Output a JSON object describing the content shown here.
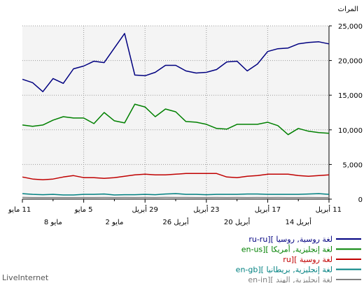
{
  "chart_data": {
    "type": "line",
    "unit_label": "المرات",
    "brand": "LiveInternet",
    "ylim": [
      0,
      25000
    ],
    "y_ticks": [
      "0",
      "5,000",
      "10,000",
      "15,000",
      "20,000",
      "25,000"
    ],
    "x_labels_top": [
      "11 مايو",
      "5 مايو",
      "29 أبريل",
      "23 أبريل",
      "17 أبريل",
      "11 أبريل"
    ],
    "x_labels_bottom": [
      "8 مايو",
      "2 مايو",
      "26 أبريل",
      "20 أبريل",
      "14 أبريل"
    ],
    "grid": true,
    "legend_position": "bottom-right",
    "series": [
      {
        "name": "ru-ru][ لغة روسية, روسيا",
        "code": "ru-ru][",
        "desc": "لغة روسية, روسيا",
        "color": "#000080",
        "values": [
          17300,
          16800,
          15500,
          17400,
          16700,
          18800,
          19200,
          19900,
          19700,
          21800,
          23900,
          17900,
          17800,
          18300,
          19300,
          19300,
          18500,
          18200,
          18300,
          18700,
          19800,
          19900,
          18500,
          19500,
          21300,
          21700,
          21800,
          22400,
          22600,
          22700,
          22400
        ]
      },
      {
        "name": "en-us][ لغة إنجليزية, أمريكا",
        "code": "en-us][",
        "desc": "لغة إنجليزية, أمريكا",
        "color": "#008000",
        "values": [
          10700,
          10500,
          10700,
          11400,
          11900,
          11700,
          11700,
          10900,
          12500,
          11300,
          11000,
          13700,
          13300,
          11900,
          13000,
          12600,
          11200,
          11100,
          10800,
          10200,
          10100,
          10800,
          10800,
          10800,
          11100,
          10600,
          9300,
          10200,
          9800,
          9600,
          9500
        ]
      },
      {
        "name": "ru][ لغة روسية",
        "code": "ru][",
        "desc": "لغة روسية",
        "color": "#c00000",
        "values": [
          3200,
          2900,
          2800,
          2900,
          3200,
          3400,
          3100,
          3100,
          3000,
          3100,
          3300,
          3500,
          3600,
          3500,
          3500,
          3600,
          3700,
          3700,
          3700,
          3700,
          3200,
          3100,
          3300,
          3400,
          3600,
          3600,
          3600,
          3400,
          3300,
          3400,
          3500
        ]
      },
      {
        "name": "en-gb][ لغة إنجليزية, بريطانيا",
        "code": "en-gb][",
        "desc": "لغة إنجليزية, بريطانيا",
        "color": "#008080",
        "values": [
          800,
          700,
          650,
          700,
          600,
          600,
          700,
          700,
          750,
          600,
          650,
          650,
          700,
          650,
          750,
          800,
          700,
          700,
          650,
          700,
          700,
          700,
          750,
          750,
          700,
          700,
          700,
          700,
          750,
          800,
          700
        ]
      },
      {
        "name": "en-in][ لغة إنجليزية, الهند",
        "code": "en-in][",
        "desc": "لغة إنجليزية, الهند",
        "color": "#808080",
        "values": [
          250,
          230,
          220,
          230,
          220,
          230,
          230,
          220,
          240,
          230,
          240,
          230,
          240,
          230,
          250,
          240,
          240,
          230,
          230,
          240,
          230,
          240,
          230,
          240,
          230,
          240,
          230,
          230,
          240,
          230,
          230
        ]
      }
    ]
  }
}
